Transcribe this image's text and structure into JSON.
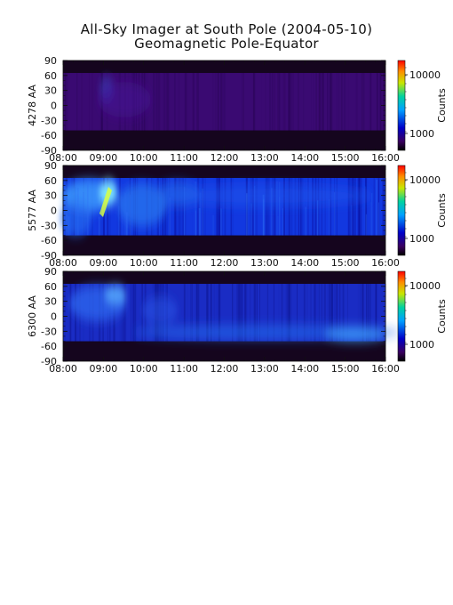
{
  "chart_data": {
    "type": "heatmap",
    "title": "All-Sky Imager at South Pole (2004-05-10)",
    "subtitle": "Geomagnetic Pole-Equator",
    "x_tick_labels": [
      "08:00",
      "09:00",
      "10:00",
      "11:00",
      "12:00",
      "13:00",
      "14:00",
      "15:00",
      "16:00"
    ],
    "y_tick_labels": [
      "90",
      "60",
      "30",
      "0",
      "-30",
      "-60",
      "-90"
    ],
    "x_range": [
      "08:00",
      "16:00"
    ],
    "y_range": [
      -90,
      90
    ],
    "colorbar_label": "Counts",
    "colorbar_tick_labels": [
      "10000",
      "1000"
    ],
    "colorbar_scale": "log",
    "panels": [
      {
        "ylabel": "4278 AA",
        "valid_lat_range": [
          -50,
          65
        ],
        "intensity": "low",
        "colorbar_max_label": "10000",
        "colorbar_min_label": "1000"
      },
      {
        "ylabel": "5577 AA",
        "valid_lat_range": [
          -50,
          65
        ],
        "intensity": "high",
        "colorbar_max_label": "10000",
        "colorbar_min_label": "1000"
      },
      {
        "ylabel": "6300 AA",
        "valid_lat_range": [
          -50,
          65
        ],
        "intensity": "medium",
        "colorbar_max_label": "10000",
        "colorbar_min_label": "1000"
      }
    ]
  }
}
